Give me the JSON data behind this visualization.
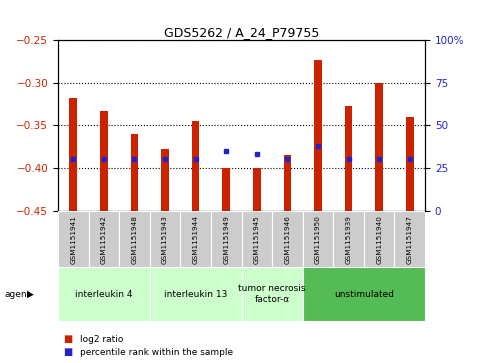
{
  "title": "GDS5262 / A_24_P79755",
  "samples": [
    "GSM1151941",
    "GSM1151942",
    "GSM1151948",
    "GSM1151943",
    "GSM1151944",
    "GSM1151949",
    "GSM1151945",
    "GSM1151946",
    "GSM1151950",
    "GSM1151939",
    "GSM1151940",
    "GSM1151947"
  ],
  "log2_ratio": [
    -0.318,
    -0.333,
    -0.36,
    -0.378,
    -0.345,
    -0.4,
    -0.4,
    -0.385,
    -0.273,
    -0.328,
    -0.3,
    -0.34
  ],
  "percentile_rank": [
    30,
    30,
    30,
    30,
    30,
    35,
    33,
    30,
    38,
    30,
    30,
    30
  ],
  "agents": [
    {
      "label": "interleukin 4",
      "start": 0,
      "end": 3,
      "color": "#ccffcc"
    },
    {
      "label": "interleukin 13",
      "start": 3,
      "end": 6,
      "color": "#ccffcc"
    },
    {
      "label": "tumor necrosis\nfactor-α",
      "start": 6,
      "end": 8,
      "color": "#ccffcc"
    },
    {
      "label": "unstimulated",
      "start": 8,
      "end": 12,
      "color": "#55bb55"
    }
  ],
  "ylim_left": [
    -0.45,
    -0.25
  ],
  "ylim_right": [
    0,
    100
  ],
  "bar_color": "#cc2200",
  "dot_color": "#2222cc",
  "bg_color": "#ffffff",
  "plot_bg": "#ffffff",
  "label_color_left": "#cc2200",
  "label_color_right": "#2222cc",
  "legend_items": [
    "log2 ratio",
    "percentile rank within the sample"
  ],
  "yticks_left": [
    -0.45,
    -0.4,
    -0.35,
    -0.3,
    -0.25
  ],
  "yticks_right": [
    0,
    25,
    50,
    75,
    100
  ],
  "bar_width": 0.25,
  "bar_bottom": -0.45,
  "sample_box_color": "#cccccc",
  "agent_light_color": "#ccffcc",
  "agent_dark_color": "#55bb55"
}
